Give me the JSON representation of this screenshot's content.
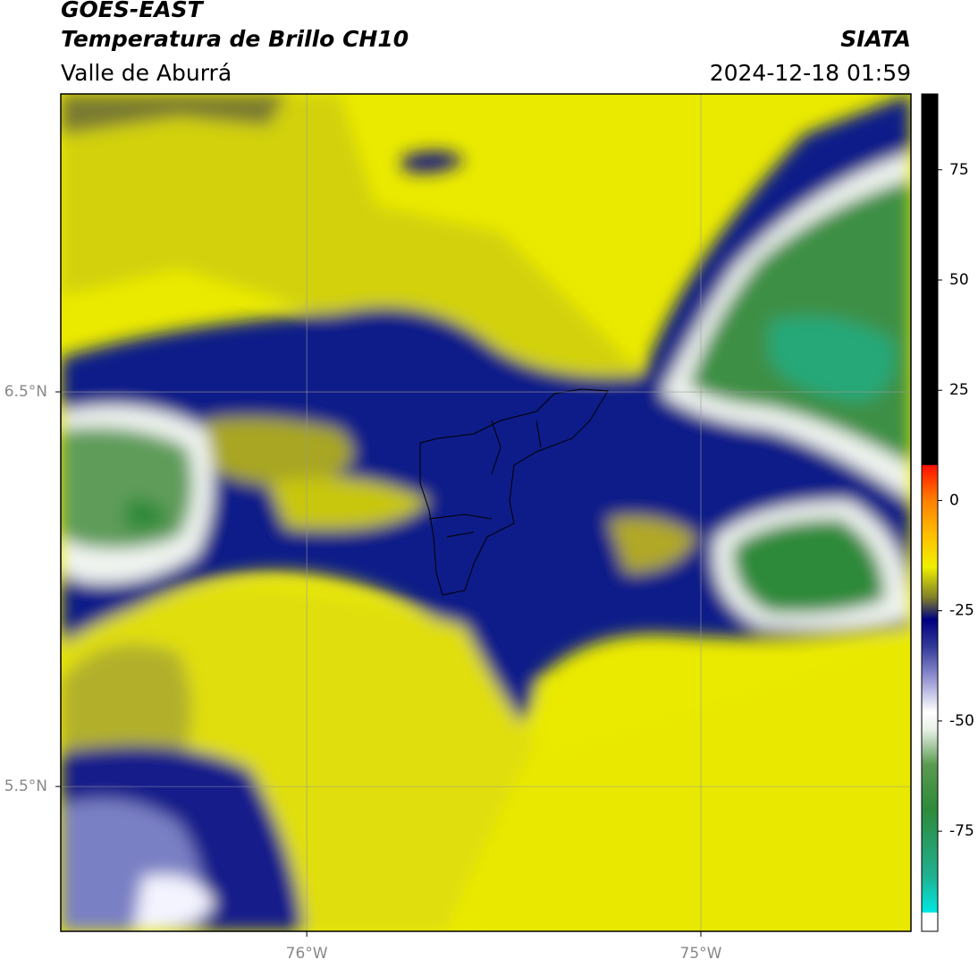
{
  "chart_data": {
    "type": "map",
    "title": "GOES-EAST",
    "subtitle": "Temperatura de Brillo CH10",
    "source": "SIATA",
    "region": "Valle de Aburrá",
    "datetime": "2024-12-18 01:59",
    "xlim": [
      -76.624,
      -74.467
    ],
    "ylim": [
      5.133,
      7.255
    ],
    "xticks": [
      {
        "value": -76,
        "label": "76°W"
      },
      {
        "value": -75,
        "label": "75°W"
      }
    ],
    "yticks": [
      {
        "value": 5.5,
        "label": "5.5°N"
      },
      {
        "value": 6.5,
        "label": "6.5°N"
      }
    ],
    "grid": true,
    "colorbar": {
      "lim": [
        -97.7,
        92.2
      ],
      "ticks": [
        -75,
        -50,
        -25,
        0,
        25,
        50,
        75
      ],
      "colormap": [
        {
          "value": -97.7,
          "color": "#ffffff"
        },
        {
          "value": -93.5,
          "color": "#ffffff"
        },
        {
          "value": -93.4,
          "color": "#00e8e0"
        },
        {
          "value": -85,
          "color": "#20b090"
        },
        {
          "value": -70,
          "color": "#2e8a3a"
        },
        {
          "value": -60,
          "color": "#5a9a50"
        },
        {
          "value": -52,
          "color": "#e8f0e8"
        },
        {
          "value": -48,
          "color": "#ffffff"
        },
        {
          "value": -40,
          "color": "#9090d0"
        },
        {
          "value": -33,
          "color": "#303898"
        },
        {
          "value": -27,
          "color": "#000080"
        },
        {
          "value": -22,
          "color": "#80802a"
        },
        {
          "value": -15,
          "color": "#f0f000"
        },
        {
          "value": -8,
          "color": "#ffc000"
        },
        {
          "value": 0,
          "color": "#ff8000"
        },
        {
          "value": 8,
          "color": "#ff1000"
        },
        {
          "value": 8.1,
          "color": "#000000"
        },
        {
          "value": 92.2,
          "color": "#000000"
        }
      ]
    }
  }
}
